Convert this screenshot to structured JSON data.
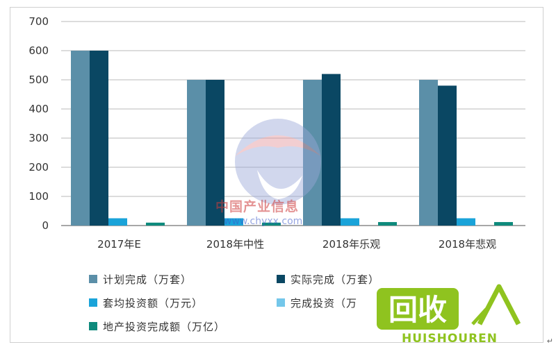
{
  "chart_data": {
    "type": "bar",
    "categories": [
      "2017年E",
      "2018年中性",
      "2018年乐观",
      "2018年悲观"
    ],
    "ylim": [
      0,
      700
    ],
    "yticks": [
      0,
      100,
      200,
      300,
      400,
      500,
      600,
      700
    ],
    "grid": true,
    "legend_position": "bottom",
    "series": [
      {
        "name": "计划完成（万套）",
        "color": "#5b8fa8",
        "values": [
          600,
          500,
          500,
          500
        ]
      },
      {
        "name": "实际完成（万套）",
        "color": "#0a4763",
        "values": [
          600,
          500,
          520,
          480
        ]
      },
      {
        "name": "套均投资额（万元）",
        "color": "#1aa3d9",
        "values": [
          25,
          25,
          25,
          25
        ]
      },
      {
        "name": "完成投资（万",
        "color": "#74c7ea",
        "values": [
          0,
          0,
          0,
          0
        ]
      },
      {
        "name": "地产投资完成额（万亿）",
        "color": "#0e8a7c",
        "values": [
          10,
          10,
          12,
          12
        ]
      }
    ]
  },
  "watermark": {
    "name": "中国产业信息",
    "url": "www.chyxx.com"
  },
  "brand": {
    "text": "HUISHOUREN",
    "logo_text": "回收",
    "logo_color": "#8fc31f"
  },
  "corner_mark": "↵"
}
